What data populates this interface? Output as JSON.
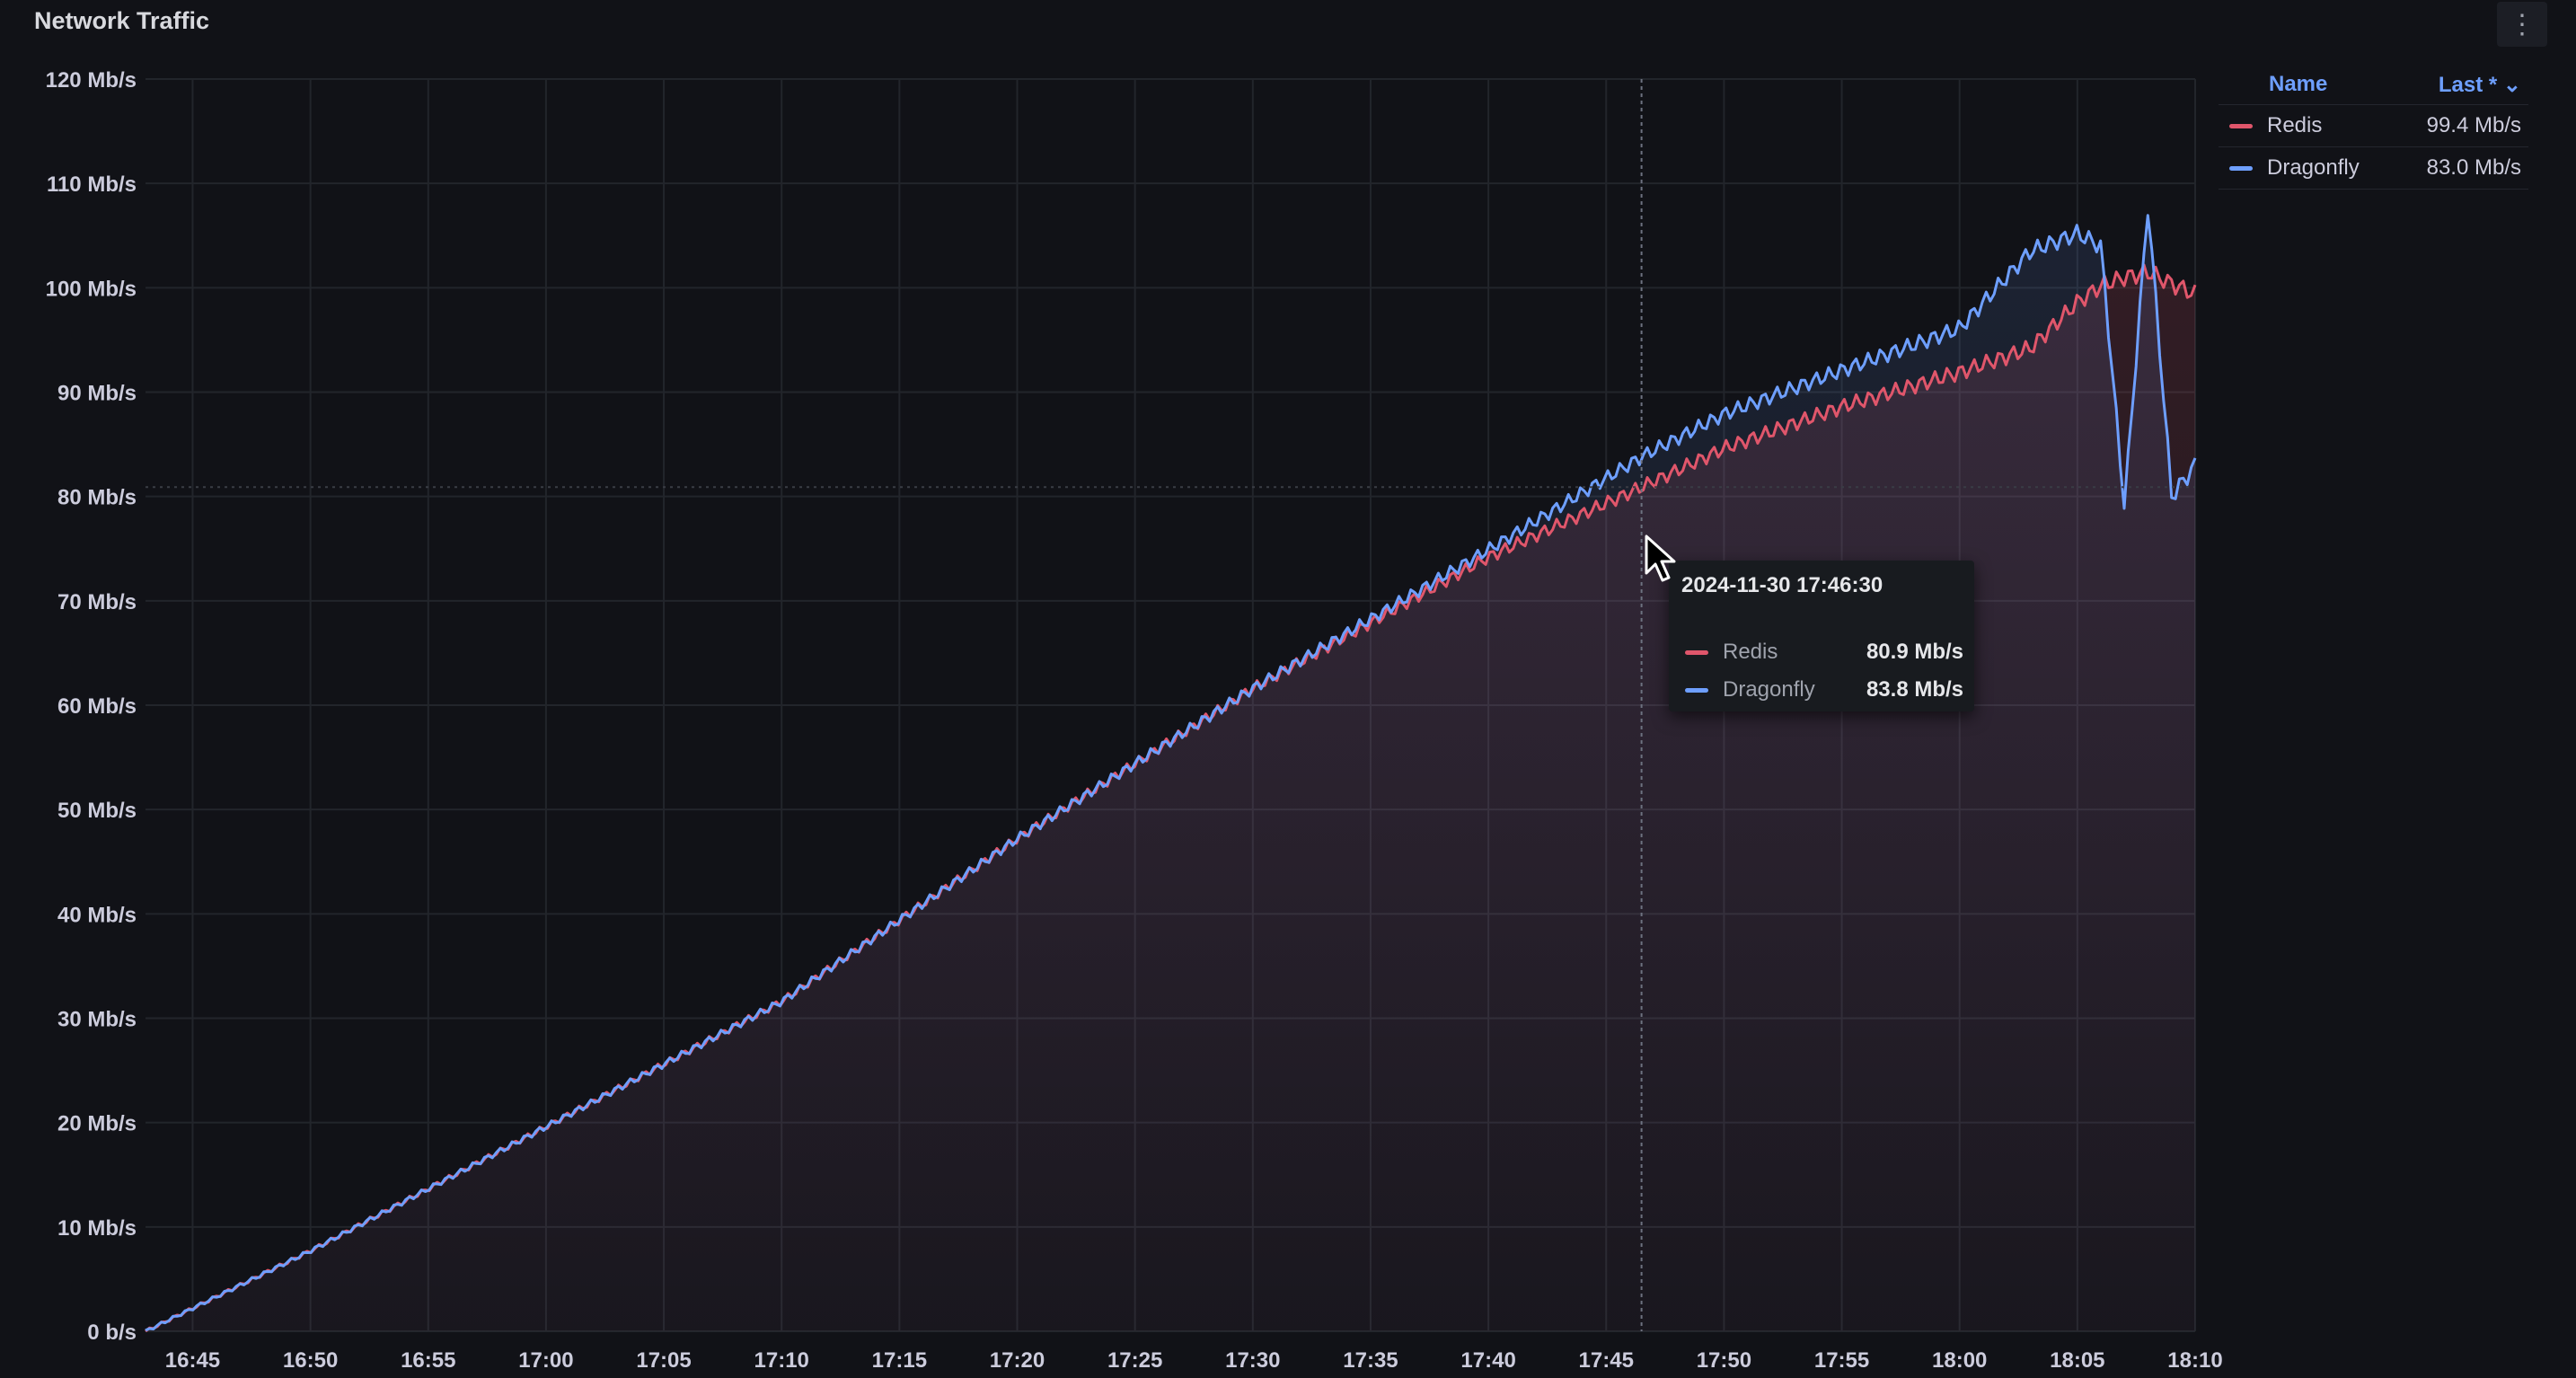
{
  "panel": {
    "title": "Network Traffic",
    "menu_icon": "kebab-menu-icon"
  },
  "legend": {
    "header_name": "Name",
    "header_sort": "Last * ⌄",
    "items": [
      {
        "name": "Redis",
        "last": "99.4 Mb/s",
        "color": "#e0566b"
      },
      {
        "name": "Dragonfly",
        "last": "83.0 Mb/s",
        "color": "#6e9fff"
      }
    ]
  },
  "tooltip": {
    "time": "2024-11-30 17:46:30",
    "rows": [
      {
        "name": "Redis",
        "value": "80.9 Mb/s",
        "color": "#e0566b"
      },
      {
        "name": "Dragonfly",
        "value": "83.8 Mb/s",
        "color": "#6e9fff"
      }
    ]
  },
  "chart_data": {
    "type": "line",
    "unit": "Mb/s",
    "y_ticks": [
      "0 b/s",
      "10 Mb/s",
      "20 Mb/s",
      "30 Mb/s",
      "40 Mb/s",
      "50 Mb/s",
      "60 Mb/s",
      "70 Mb/s",
      "80 Mb/s",
      "90 Mb/s",
      "100 Mb/s",
      "110 Mb/s",
      "120 Mb/s"
    ],
    "x_ticks": [
      "16:45",
      "16:50",
      "16:55",
      "17:00",
      "17:05",
      "17:10",
      "17:15",
      "17:20",
      "17:25",
      "17:30",
      "17:35",
      "17:40",
      "17:45",
      "17:50",
      "17:55",
      "18:00",
      "18:05",
      "18:10"
    ],
    "ylim": [
      0,
      120
    ],
    "xlim": [
      "16:43",
      "18:10"
    ],
    "x": [
      "16:43",
      "16:50",
      "17:00",
      "17:10",
      "17:20",
      "17:30",
      "17:40",
      "17:46:30",
      "17:50",
      "17:55",
      "18:00",
      "18:03",
      "18:05",
      "18:06",
      "18:07",
      "18:08",
      "18:09",
      "18:10"
    ],
    "series": [
      {
        "name": "Redis",
        "color": "#e0566b",
        "values": [
          0,
          7.7,
          19.6,
          31.6,
          47.2,
          61.6,
          74.2,
          80.9,
          84.6,
          88.6,
          91.9,
          94.2,
          98.6,
          100.2,
          101.0,
          101.5,
          100.4,
          99.4
        ]
      },
      {
        "name": "Dragonfly",
        "color": "#6e9fff",
        "values": [
          0,
          7.7,
          19.6,
          31.6,
          47.2,
          61.6,
          74.9,
          83.8,
          87.9,
          92.1,
          96.1,
          103.5,
          105.2,
          104.0,
          79.0,
          108.0,
          80.0,
          83.0
        ]
      }
    ],
    "grid": true,
    "legend_position": "right",
    "cursor_time": "17:46:30"
  }
}
